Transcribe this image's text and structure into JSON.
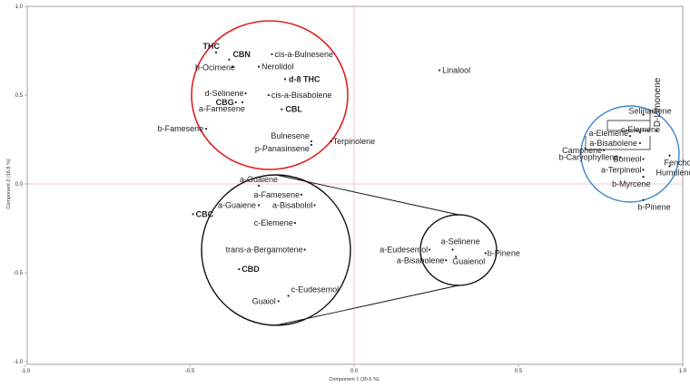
{
  "chart_data": {
    "type": "scatter",
    "title": "",
    "xlabel": "Component 1 (30.5 %)",
    "ylabel": "Component 2 (16.8 %)",
    "xlim": [
      -1.0,
      1.0
    ],
    "ylim": [
      -1.0,
      1.0
    ],
    "x_ticks": [
      "-1.0",
      "-0.5",
      "0.0",
      "0.5",
      "1.0"
    ],
    "y_ticks": [
      "1.0",
      "0.5",
      "0.0",
      "-0.5",
      "-1.0"
    ],
    "colors": {
      "zero_lines": "#f4b6c2",
      "red_group": "#e02020",
      "blue_group": "#3a86c8",
      "black_group": "#111111"
    },
    "main_points": [
      {
        "label": "THC",
        "x": -0.42,
        "y": 0.74,
        "bold": true
      },
      {
        "label": "CBN",
        "x": -0.38,
        "y": 0.7,
        "bold": true
      },
      {
        "label": "b-Ocimene",
        "x": -0.37,
        "y": 0.66
      },
      {
        "label": "cis-a-Bulnesene",
        "x": -0.25,
        "y": 0.73
      },
      {
        "label": "Nerolidol",
        "x": -0.29,
        "y": 0.66
      },
      {
        "label": "d-8 THC",
        "x": -0.21,
        "y": 0.59,
        "bold": true
      },
      {
        "label": "d-Selinene",
        "x": -0.33,
        "y": 0.51
      },
      {
        "label": "cis-a-Bisabolene",
        "x": -0.26,
        "y": 0.5
      },
      {
        "label": "CBG",
        "x": -0.36,
        "y": 0.46,
        "bold": true
      },
      {
        "label": "a-Farnesene",
        "x": -0.34,
        "y": 0.46
      },
      {
        "label": "CBL",
        "x": -0.22,
        "y": 0.42,
        "bold": true
      },
      {
        "label": "b-Famesene",
        "x": -0.45,
        "y": 0.31
      },
      {
        "label": "Bulnesene",
        "x": -0.13,
        "y": 0.24
      },
      {
        "label": "p-Panasinsene",
        "x": -0.13,
        "y": 0.22
      },
      {
        "label": "Terpinolene",
        "x": -0.07,
        "y": 0.24
      },
      {
        "label": "Linalool",
        "x": 0.26,
        "y": 0.64
      },
      {
        "label": "CBC",
        "x": -0.49,
        "y": -0.17,
        "bold": true
      },
      {
        "label": "a-Guaiene",
        "x": -0.29,
        "y": -0.12
      },
      {
        "label": "Selinadiene",
        "x": 0.88,
        "y": 0.39
      },
      {
        "label": "D-Limonene",
        "x": 0.92,
        "y": 0.3
      },
      {
        "label": "c-Elemene",
        "x": 0.87,
        "y": 0.29
      },
      {
        "label": "a-Elemene",
        "x": 0.84,
        "y": 0.27
      },
      {
        "label": "a-Bisabolene",
        "x": 0.87,
        "y": 0.23
      },
      {
        "label": "Camphene",
        "x": 0.76,
        "y": 0.19
      },
      {
        "label": "Fenchol",
        "x": 0.96,
        "y": 0.16
      },
      {
        "label": "b-Caryophyllene",
        "x": 0.81,
        "y": 0.15
      },
      {
        "label": "Borneol",
        "x": 0.88,
        "y": 0.14
      },
      {
        "label": "Humulene",
        "x": 0.96,
        "y": 0.1
      },
      {
        "label": "a-Terpineol",
        "x": 0.88,
        "y": 0.08
      },
      {
        "label": "b-Myrcene",
        "x": 0.88,
        "y": 0.04
      },
      {
        "label": "b-Pinene",
        "x": 0.88,
        "y": -0.09
      }
    ],
    "zoom_left_points": [
      {
        "label": "a-Guaiene",
        "x": -0.29,
        "y": -0.01
      },
      {
        "label": "a-Famesene",
        "x": -0.16,
        "y": -0.06
      },
      {
        "label": "a-Bisabolol",
        "x": -0.12,
        "y": -0.12
      },
      {
        "label": "c-Elemene",
        "x": -0.18,
        "y": -0.22
      },
      {
        "label": "trans-a-Bergamotene",
        "x": -0.15,
        "y": -0.37
      },
      {
        "label": "CBD",
        "x": -0.35,
        "y": -0.48,
        "bold": true
      },
      {
        "label": "c-Eudesemol",
        "x": -0.2,
        "y": -0.63
      },
      {
        "label": "Guaiol",
        "x": -0.23,
        "y": -0.66
      }
    ],
    "zoom_right_points": [
      {
        "label": "a-Selinene",
        "x": 0.3,
        "y": -0.37
      },
      {
        "label": "a-Eudesemol",
        "x": 0.23,
        "y": -0.37
      },
      {
        "label": "b-Pinene",
        "x": 0.4,
        "y": -0.39
      },
      {
        "label": "a-Bisabolene",
        "x": 0.28,
        "y": -0.43
      },
      {
        "label": "Guaienol",
        "x": 0.31,
        "y": -0.41
      }
    ]
  }
}
